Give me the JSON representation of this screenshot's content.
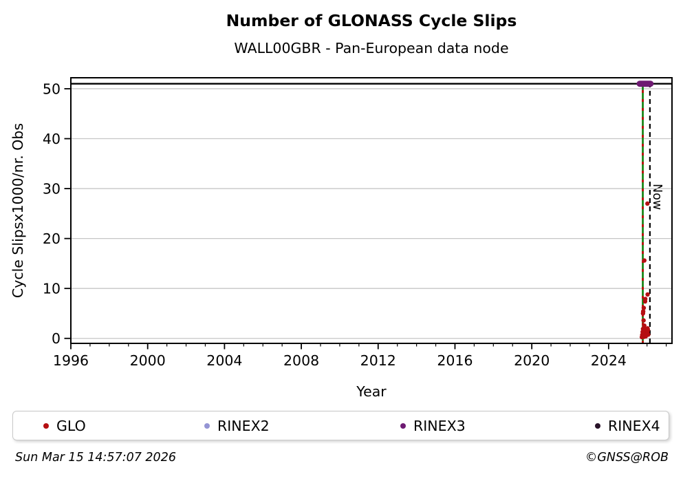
{
  "figure": {
    "footer_left": "Sun Mar 15 14:57:07 2026",
    "footer_right": "©GNSS@ROB"
  },
  "chart_data": {
    "type": "scatter",
    "title": "Number of GLONASS Cycle Slips",
    "subtitle": "WALL00GBR - Pan-European data node",
    "xlabel": "Year",
    "ylabel": "Cycle Slipsx1000/nr. Obs",
    "xlim": [
      1996,
      2027.3
    ],
    "ylim": [
      -1,
      52.2
    ],
    "xticks": [
      1996,
      2000,
      2004,
      2008,
      2012,
      2016,
      2020,
      2024
    ],
    "x_minor_step": 1,
    "yticks": [
      0,
      10,
      20,
      30,
      40,
      50
    ],
    "grid": "horizontal-only",
    "grid_color": "#c6c6c6",
    "cap_line": {
      "y": 51,
      "color": "#000000"
    },
    "now_line": {
      "x": 2026.15,
      "label": "Now",
      "color": "#000000",
      "style": "dashed"
    },
    "event_line": {
      "x": 2025.78,
      "y_from": -1,
      "y_to": 51,
      "colors": [
        "#0a7d0a",
        "#c00000"
      ],
      "style": "green-solid-with-red-dashes"
    },
    "legend_position": "bottom",
    "series": [
      {
        "name": "GLO",
        "color": "#b50f12",
        "marker_radius": 3.2,
        "points": [
          [
            2025.73,
            0.25
          ],
          [
            2025.75,
            0.7
          ],
          [
            2025.77,
            1.3
          ],
          [
            2025.78,
            0.45
          ],
          [
            2025.79,
            1.9
          ],
          [
            2025.81,
            0.85
          ],
          [
            2025.82,
            1.55
          ],
          [
            2025.83,
            0.3
          ],
          [
            2025.84,
            2.1
          ],
          [
            2025.85,
            1.05
          ],
          [
            2025.86,
            2.55
          ],
          [
            2025.87,
            0.55
          ],
          [
            2025.88,
            1.45
          ],
          [
            2025.9,
            0.95
          ],
          [
            2025.91,
            1.75
          ],
          [
            2025.93,
            0.4
          ],
          [
            2025.95,
            1.15
          ],
          [
            2025.97,
            0.65
          ],
          [
            2025.99,
            1.5
          ],
          [
            2026.0,
            0.9
          ],
          [
            2026.02,
            1.25
          ],
          [
            2026.03,
            2.0
          ],
          [
            2026.05,
            1.65
          ],
          [
            2026.06,
            0.75
          ],
          [
            2025.82,
            3.6
          ],
          [
            2025.79,
            5.0
          ],
          [
            2025.8,
            5.4
          ],
          [
            2025.83,
            6.1
          ],
          [
            2025.9,
            7.4
          ],
          [
            2025.91,
            7.9
          ],
          [
            2026.03,
            8.8
          ],
          [
            2025.86,
            15.6
          ],
          [
            2026.02,
            27.0
          ],
          [
            2025.78,
            51.0
          ]
        ]
      },
      {
        "name": "RINEX2",
        "color": "#9494d4",
        "marker_radius": 3.2,
        "points": []
      },
      {
        "name": "RINEX3",
        "color": "#6e1a72",
        "marker_radius": 4.5,
        "points": [
          [
            2025.62,
            51
          ],
          [
            2025.66,
            51
          ],
          [
            2025.7,
            51
          ],
          [
            2025.74,
            51
          ],
          [
            2025.78,
            51
          ],
          [
            2025.82,
            51
          ],
          [
            2025.86,
            51
          ],
          [
            2025.9,
            51
          ],
          [
            2025.94,
            51
          ],
          [
            2025.98,
            51
          ],
          [
            2026.02,
            51
          ],
          [
            2026.06,
            51
          ],
          [
            2026.1,
            51
          ],
          [
            2026.14,
            51
          ],
          [
            2026.18,
            51
          ]
        ]
      },
      {
        "name": "RINEX4",
        "color": "#291329",
        "marker_radius": 3.2,
        "points": []
      }
    ]
  }
}
